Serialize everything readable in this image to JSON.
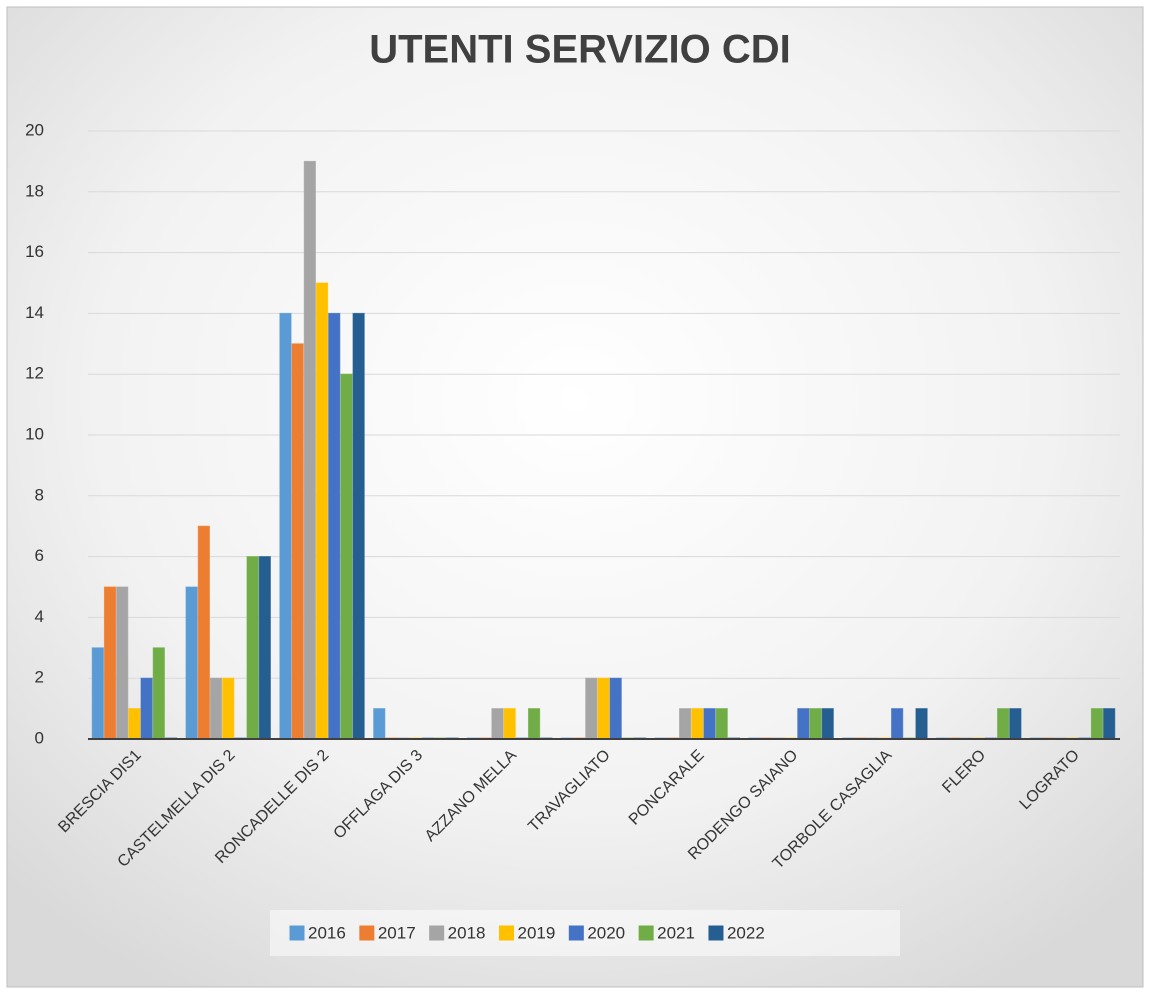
{
  "chart_data": {
    "type": "bar",
    "title": "UTENTI SERVIZIO CDI",
    "categories": [
      "BRESCIA DIS1",
      "CASTELMELLA DIS 2",
      "RONCADELLE DIS 2",
      "OFFLAGA DIS 3",
      "AZZANO MELLA",
      "TRAVAGLIATO",
      "PONCARALE",
      "RODENGO SAIANO",
      "TORBOLE CASAGLIA",
      "FLERO",
      "LOGRATO"
    ],
    "series": [
      {
        "name": "2016",
        "color": "#5b9bd5",
        "values": [
          3,
          5,
          14,
          1,
          0,
          0,
          0,
          0,
          0,
          0,
          0
        ]
      },
      {
        "name": "2017",
        "color": "#ed7d31",
        "values": [
          5,
          7,
          13,
          0,
          0,
          0,
          0,
          0,
          0,
          0,
          0
        ]
      },
      {
        "name": "2018",
        "color": "#a5a5a5",
        "values": [
          5,
          2,
          19,
          0,
          1,
          2,
          1,
          0,
          0,
          0,
          0
        ]
      },
      {
        "name": "2019",
        "color": "#ffc000",
        "values": [
          1,
          2,
          15,
          0,
          1,
          2,
          1,
          0,
          0,
          0,
          0
        ]
      },
      {
        "name": "2020",
        "color": "#4472c4",
        "values": [
          2,
          0,
          14,
          0,
          0,
          2,
          1,
          1,
          1,
          0,
          0
        ]
      },
      {
        "name": "2021",
        "color": "#70ad47",
        "values": [
          3,
          6,
          12,
          0,
          1,
          0,
          1,
          1,
          0,
          1,
          1
        ]
      },
      {
        "name": "2022",
        "color": "#255e91",
        "values": [
          0,
          6,
          14,
          0,
          0,
          0,
          0,
          1,
          1,
          1,
          1
        ]
      }
    ],
    "ylim": [
      0,
      20
    ],
    "yticks": [
      0,
      2,
      4,
      6,
      8,
      10,
      12,
      14,
      16,
      18,
      20
    ],
    "grid": true,
    "legend": "bottom"
  }
}
